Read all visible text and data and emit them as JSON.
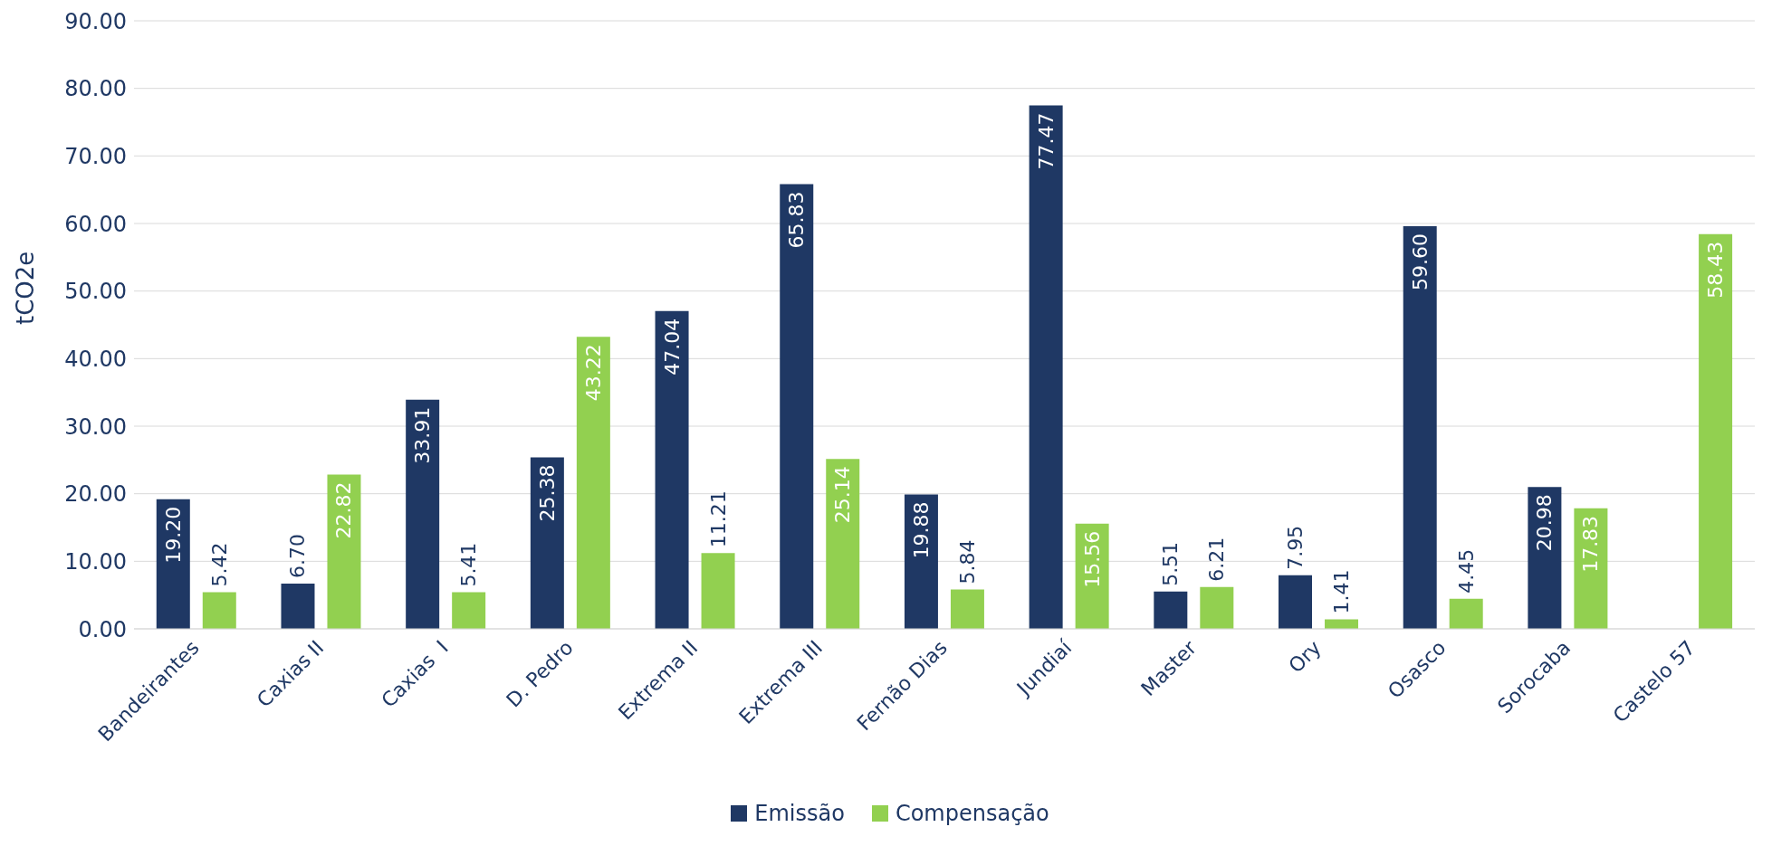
{
  "chart_data": {
    "type": "bar",
    "ylabel": "tCO2e",
    "categories": [
      "Bandeirantes",
      "Caxias II",
      "Caxias  I",
      "D. Pedro",
      "Extrema II",
      "Extrema III",
      "Fernão Dias",
      "Jundiaí",
      "Master",
      "Ory",
      "Osasco",
      "Sorocaba",
      "Castelo 57"
    ],
    "series": [
      {
        "name": "Emissão",
        "color": "#1f3864",
        "values": [
          19.2,
          6.7,
          33.91,
          25.38,
          47.04,
          65.83,
          19.88,
          77.47,
          5.51,
          7.95,
          59.6,
          20.98,
          null
        ],
        "value_labels": [
          "19.20",
          "6.70",
          "33.91",
          "25.38",
          "47.04",
          "65.83",
          "19.88",
          "77.47",
          "5.51",
          "7.95",
          "59.60",
          "20.98",
          null
        ]
      },
      {
        "name": "Compensação",
        "color": "#92d050",
        "values": [
          5.42,
          22.82,
          5.41,
          43.22,
          11.21,
          25.14,
          5.84,
          15.56,
          6.21,
          1.41,
          4.45,
          17.83,
          58.43
        ],
        "value_labels": [
          "5.42",
          "22.82",
          "5.41",
          "43.22",
          "11.21",
          "25.14",
          "5.84",
          "15.56",
          "6.21",
          "1.41",
          "4.45",
          "17.83",
          "58.43"
        ]
      }
    ],
    "ylim": [
      0,
      90
    ],
    "yticks": [
      {
        "value": 0,
        "label": "0.00"
      },
      {
        "value": 10,
        "label": "10.00"
      },
      {
        "value": 20,
        "label": "20.00"
      },
      {
        "value": 30,
        "label": "30.00"
      },
      {
        "value": 40,
        "label": "40.00"
      },
      {
        "value": 50,
        "label": "50.00"
      },
      {
        "value": 60,
        "label": "60.00"
      },
      {
        "value": 70,
        "label": "70.00"
      },
      {
        "value": 80,
        "label": "80.00"
      },
      {
        "value": 90,
        "label": "90.00"
      }
    ],
    "grid": "y",
    "legend": "bottom"
  }
}
